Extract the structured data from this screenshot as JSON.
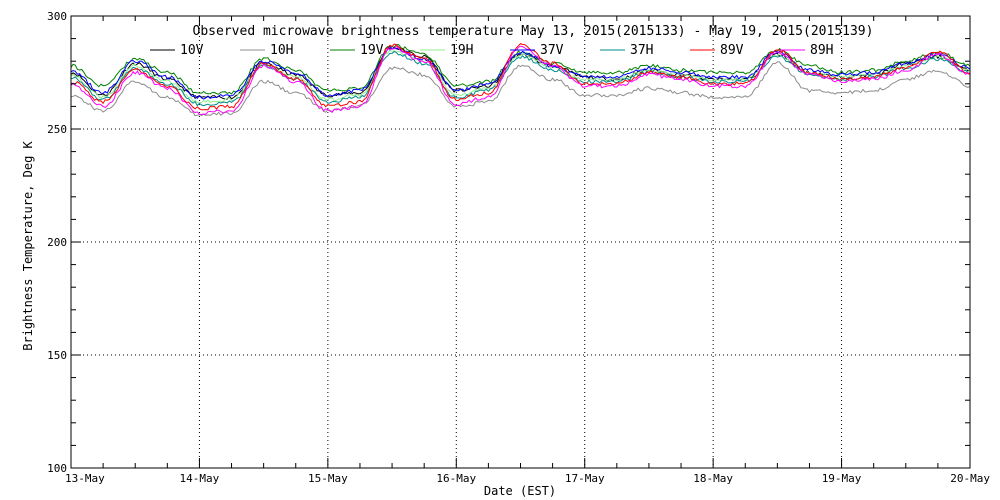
{
  "chart_data": {
    "type": "line",
    "title": "Observed microwave brightness temperature May 13, 2015(2015133) - May 19, 2015(2015139)",
    "xlabel": "Date (EST)",
    "ylabel": "Brightness Temperature, Deg K",
    "xlim": [
      "2015-05-13",
      "2015-05-20"
    ],
    "ylim": [
      100,
      300
    ],
    "x_tick_labels": [
      "13-May",
      "14-May",
      "15-May",
      "16-May",
      "17-May",
      "18-May",
      "19-May",
      "20-May"
    ],
    "y_tick_labels": [
      "100",
      "150",
      "200",
      "250",
      "300"
    ],
    "y_ticks": [
      100,
      150,
      200,
      250,
      300
    ],
    "grid": true,
    "legend_position": "top",
    "x": [
      "2015-05-13T00:00",
      "2015-05-13T06:00",
      "2015-05-13T12:00",
      "2015-05-13T18:00",
      "2015-05-14T00:00",
      "2015-05-14T06:00",
      "2015-05-14T12:00",
      "2015-05-14T18:00",
      "2015-05-15T00:00",
      "2015-05-15T06:00",
      "2015-05-15T12:00",
      "2015-05-15T18:00",
      "2015-05-16T00:00",
      "2015-05-16T06:00",
      "2015-05-16T12:00",
      "2015-05-16T18:00",
      "2015-05-17T00:00",
      "2015-05-17T06:00",
      "2015-05-17T12:00",
      "2015-05-17T18:00",
      "2015-05-18T00:00",
      "2015-05-18T06:00",
      "2015-05-18T12:00",
      "2015-05-18T18:00",
      "2015-05-19T00:00",
      "2015-05-19T06:00",
      "2015-05-19T12:00",
      "2015-05-19T18:00",
      "2015-05-20T00:00"
    ],
    "series": [
      {
        "name": "10V",
        "color": "#000000",
        "values": [
          275,
          265,
          279,
          272,
          264,
          264,
          279,
          274,
          265,
          266,
          286,
          282,
          267,
          269,
          283,
          278,
          273,
          272,
          276,
          274,
          272,
          272,
          283,
          275,
          273,
          274,
          279,
          282,
          276
        ]
      },
      {
        "name": "10H",
        "color": "#8c8c8c",
        "values": [
          265,
          258,
          271,
          264,
          256,
          257,
          271,
          266,
          258,
          260,
          277,
          274,
          260,
          262,
          278,
          272,
          265,
          265,
          268,
          266,
          264,
          264,
          279,
          267,
          266,
          267,
          272,
          276,
          269
        ]
      },
      {
        "name": "19V",
        "color": "#008000",
        "values": [
          278,
          269,
          281,
          275,
          266,
          266,
          281,
          276,
          267,
          268,
          287,
          283,
          269,
          271,
          284,
          279,
          275,
          275,
          278,
          276,
          275,
          275,
          285,
          278,
          275,
          276,
          280,
          284,
          278
        ]
      },
      {
        "name": "19H",
        "color": "#90ee90",
        "values": [
          274,
          264,
          278,
          271,
          262,
          263,
          279,
          273,
          263,
          265,
          285,
          280,
          265,
          268,
          283,
          277,
          272,
          272,
          276,
          274,
          272,
          272,
          283,
          275,
          273,
          274,
          278,
          282,
          276
        ]
      },
      {
        "name": "37V",
        "color": "#0000ff",
        "values": [
          276,
          266,
          280,
          273,
          264,
          265,
          280,
          275,
          265,
          267,
          286,
          281,
          267,
          270,
          284,
          278,
          273,
          273,
          277,
          275,
          273,
          273,
          284,
          276,
          274,
          275,
          279,
          283,
          277
        ]
      },
      {
        "name": "37H",
        "color": "#008b8b",
        "values": [
          273,
          263,
          277,
          270,
          261,
          262,
          278,
          272,
          262,
          264,
          284,
          279,
          264,
          267,
          282,
          276,
          271,
          271,
          275,
          273,
          271,
          271,
          282,
          274,
          272,
          273,
          277,
          281,
          275
        ]
      },
      {
        "name": "89V",
        "color": "#ff0000",
        "values": [
          271,
          262,
          276,
          269,
          259,
          260,
          279,
          272,
          260,
          262,
          287,
          281,
          263,
          266,
          287,
          279,
          270,
          270,
          275,
          273,
          270,
          270,
          285,
          275,
          272,
          273,
          277,
          284,
          275
        ]
      },
      {
        "name": "89H",
        "color": "#ff00ff",
        "values": [
          270,
          260,
          275,
          268,
          257,
          258,
          278,
          271,
          258,
          260,
          286,
          280,
          261,
          264,
          286,
          278,
          269,
          269,
          274,
          272,
          269,
          269,
          284,
          274,
          271,
          272,
          276,
          283,
          274
        ]
      }
    ]
  }
}
